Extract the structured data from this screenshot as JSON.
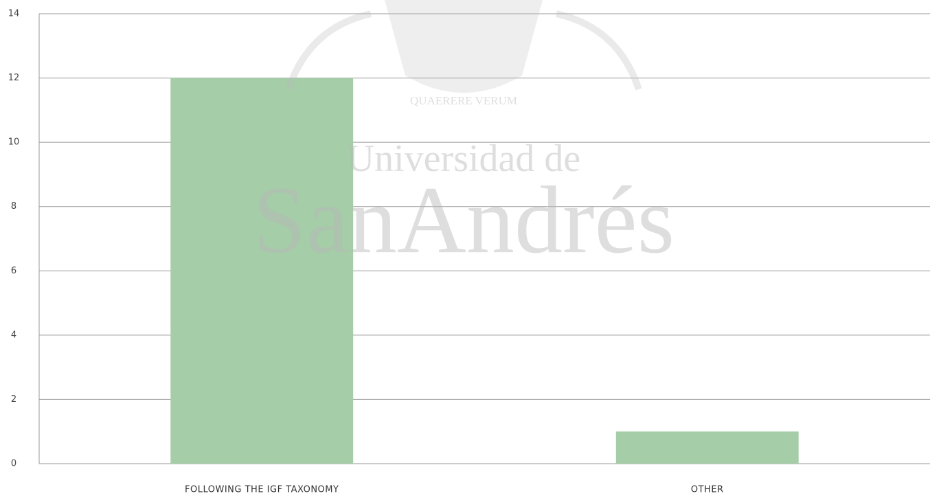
{
  "chart_data": {
    "type": "bar",
    "categories": [
      "FOLLOWING THE IGF TAXONOMY",
      "OTHER"
    ],
    "values": [
      12,
      1
    ],
    "color": "#a5cda8",
    "ylim": [
      0,
      14
    ],
    "yticks": [
      0,
      2,
      4,
      6,
      8,
      10,
      12,
      14
    ],
    "grid": true
  },
  "watermark": {
    "motto": "QUAERERE VERUM",
    "line1": "Universidad de",
    "line2": "SanAndrés"
  }
}
